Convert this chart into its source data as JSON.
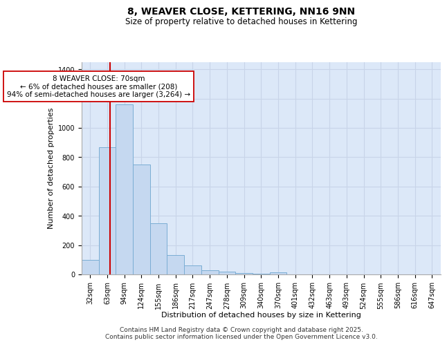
{
  "title": "8, WEAVER CLOSE, KETTERING, NN16 9NN",
  "subtitle": "Size of property relative to detached houses in Kettering",
  "xlabel": "Distribution of detached houses by size in Kettering",
  "ylabel": "Number of detached properties",
  "bar_categories": [
    "32sqm",
    "63sqm",
    "94sqm",
    "124sqm",
    "155sqm",
    "186sqm",
    "217sqm",
    "247sqm",
    "278sqm",
    "309sqm",
    "340sqm",
    "370sqm",
    "401sqm",
    "432sqm",
    "463sqm",
    "493sqm",
    "524sqm",
    "555sqm",
    "586sqm",
    "616sqm",
    "647sqm"
  ],
  "bar_values": [
    100,
    870,
    1160,
    750,
    350,
    130,
    60,
    30,
    20,
    10,
    5,
    15,
    2,
    0,
    0,
    0,
    0,
    0,
    0,
    0,
    0
  ],
  "bar_color": "#c5d8f0",
  "bar_edge_color": "#7aadd4",
  "vline_x": 1.15,
  "vline_color": "#cc0000",
  "annotation_text": "8 WEAVER CLOSE: 70sqm\n← 6% of detached houses are smaller (208)\n94% of semi-detached houses are larger (3,264) →",
  "annotation_box_color": "white",
  "annotation_box_edge_color": "#cc0000",
  "annotation_fontsize": 7.5,
  "ylim": [
    0,
    1450
  ],
  "yticks": [
    0,
    200,
    400,
    600,
    800,
    1000,
    1200,
    1400
  ],
  "grid_color": "#c8d4e8",
  "background_color": "#dce8f8",
  "footer_text": "Contains HM Land Registry data © Crown copyright and database right 2025.\nContains public sector information licensed under the Open Government Licence v3.0.",
  "title_fontsize": 10,
  "subtitle_fontsize": 8.5,
  "xlabel_fontsize": 8,
  "ylabel_fontsize": 8,
  "tick_fontsize": 7,
  "footer_fontsize": 6.5
}
